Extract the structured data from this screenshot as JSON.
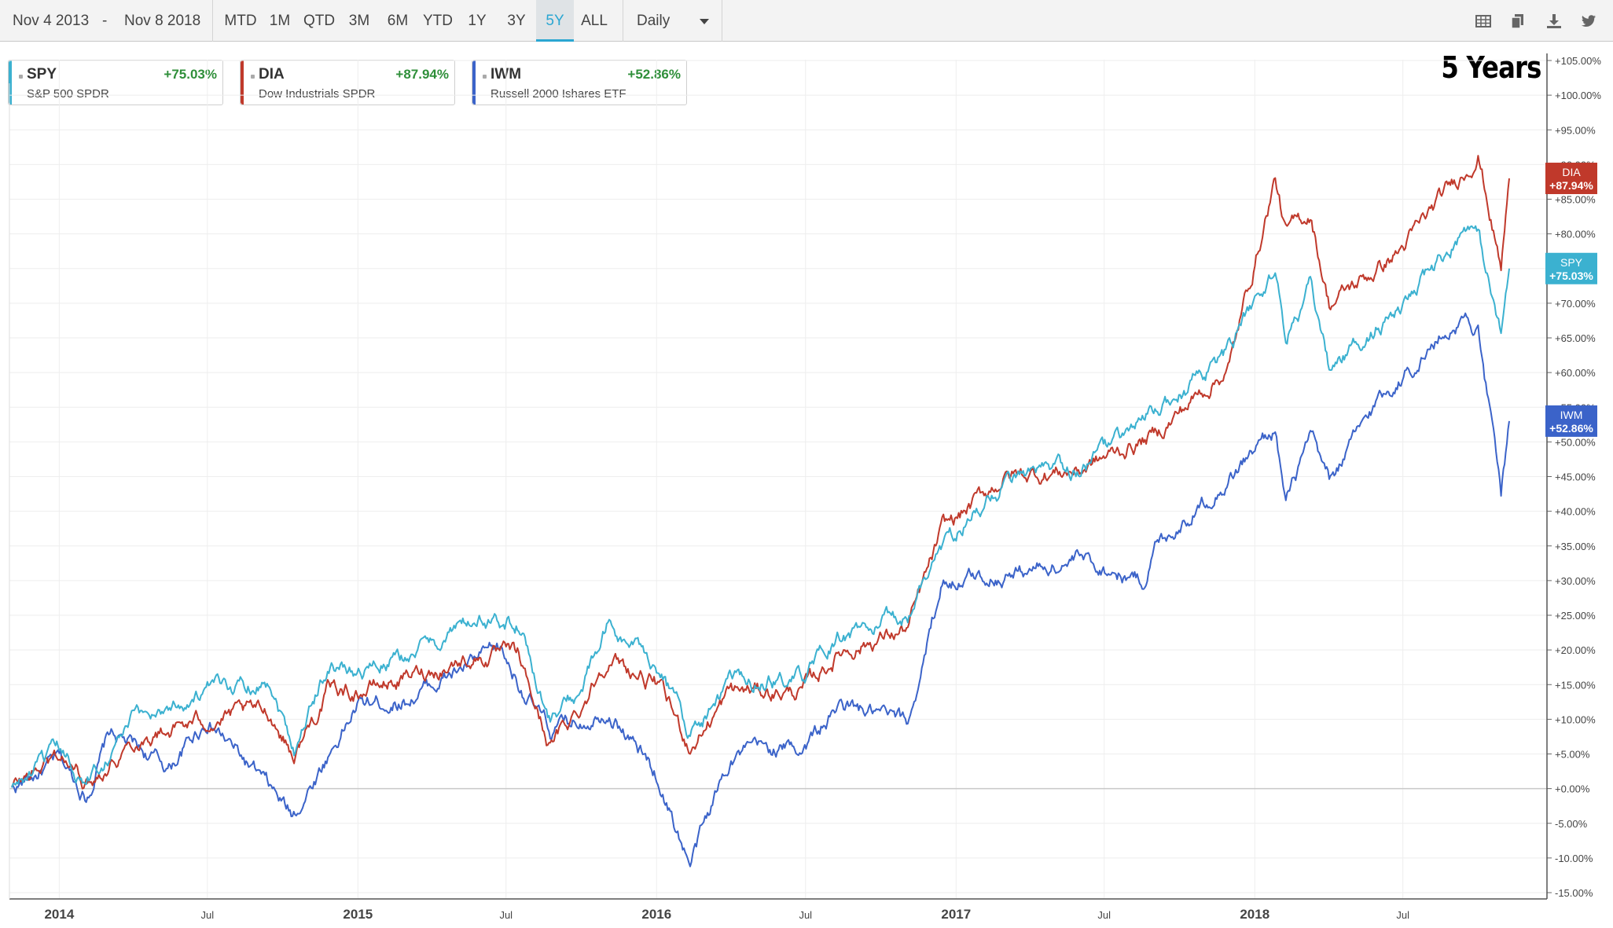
{
  "toolbar": {
    "start_date": "Nov 4 2013",
    "dash": "-",
    "end_date": "Nov 8 2018",
    "ranges": [
      "MTD",
      "1M",
      "QTD",
      "3M",
      "6M",
      "YTD",
      "1Y",
      "3Y",
      "5Y",
      "ALL"
    ],
    "active_range": "5Y",
    "interval": "Daily",
    "icons": [
      "table-icon",
      "copy-icon",
      "download-icon",
      "twitter-icon"
    ]
  },
  "overlay_text": "5 Years",
  "legend": [
    {
      "symbol": "SPY",
      "name": "S&P 500 SPDR",
      "change": "+75.03%",
      "color": "#3bb1d0"
    },
    {
      "symbol": "DIA",
      "name": "Dow Industrials SPDR",
      "change": "+87.94%",
      "color": "#c0392b"
    },
    {
      "symbol": "IWM",
      "name": "Russell 2000 Ishares ETF",
      "change": "+52.86%",
      "color": "#3b63c9"
    }
  ],
  "chart_data": {
    "type": "line",
    "x_ticks": [
      "2014",
      "Jul",
      "2015",
      "Jul",
      "2016",
      "Jul",
      "2017",
      "Jul",
      "2018",
      "Jul"
    ],
    "y_ticks": [
      "+105.00%",
      "+100.00%",
      "+95.00%",
      "+90.00%",
      "+85.00%",
      "+80.00%",
      "+75.00%",
      "+70.00%",
      "+65.00%",
      "+60.00%",
      "+55.00%",
      "+50.00%",
      "+45.00%",
      "+40.00%",
      "+35.00%",
      "+30.00%",
      "+25.00%",
      "+20.00%",
      "+15.00%",
      "+10.00%",
      "+5.00%",
      "+0.00%",
      "-5.00%",
      "-10.00%",
      "-15.00%"
    ],
    "ylim": [
      -15,
      105
    ],
    "xlim": [
      "2013-11-04",
      "2018-11-08"
    ],
    "grid": true,
    "series": [
      {
        "name": "SPY",
        "color": "#3bb1d0",
        "last_label": "+75.03%",
        "x": [
          "2013-11-04",
          "2014-01-01",
          "2014-02-03",
          "2014-04-01",
          "2014-07-01",
          "2014-09-15",
          "2014-10-15",
          "2014-11-25",
          "2014-12-31",
          "2015-03-01",
          "2015-05-20",
          "2015-07-15",
          "2015-08-24",
          "2015-10-01",
          "2015-11-01",
          "2016-01-01",
          "2016-02-11",
          "2016-04-01",
          "2016-06-27",
          "2016-08-15",
          "2016-11-03",
          "2016-12-15",
          "2017-03-01",
          "2017-06-01",
          "2017-09-01",
          "2017-12-01",
          "2018-01-26",
          "2018-02-08",
          "2018-03-10",
          "2018-04-02",
          "2018-06-01",
          "2018-07-01",
          "2018-09-20",
          "2018-10-01",
          "2018-10-29",
          "2018-11-08"
        ],
        "y": [
          0,
          5,
          1,
          10,
          14,
          16,
          6,
          18,
          17,
          19,
          24,
          24,
          10,
          14,
          23,
          18,
          8,
          15,
          16,
          22,
          25,
          35,
          44,
          46,
          54,
          63,
          75,
          65,
          72,
          60,
          67,
          69,
          82,
          80,
          65,
          75
        ]
      },
      {
        "name": "DIA",
        "color": "#c0392b",
        "last_label": "+87.94%",
        "x": [
          "2013-11-04",
          "2014-01-01",
          "2014-02-03",
          "2014-04-01",
          "2014-07-01",
          "2014-09-15",
          "2014-10-15",
          "2014-11-25",
          "2014-12-31",
          "2015-03-01",
          "2015-05-20",
          "2015-07-15",
          "2015-08-24",
          "2015-10-01",
          "2015-11-01",
          "2016-01-01",
          "2016-02-11",
          "2016-04-01",
          "2016-06-27",
          "2016-08-15",
          "2016-11-03",
          "2016-12-15",
          "2017-03-01",
          "2017-06-01",
          "2017-09-01",
          "2017-12-01",
          "2018-01-26",
          "2018-02-08",
          "2018-03-10",
          "2018-04-02",
          "2018-06-01",
          "2018-07-01",
          "2018-09-20",
          "2018-10-01",
          "2018-10-29",
          "2018-11-08"
        ],
        "y": [
          0,
          5,
          1,
          7,
          10,
          11,
          5,
          14,
          14,
          16,
          19,
          19,
          6,
          12,
          19,
          15,
          6,
          14,
          14,
          20,
          23,
          37,
          45,
          46,
          51,
          61,
          88,
          80,
          83,
          70,
          75,
          78,
          90,
          92,
          75,
          88
        ]
      },
      {
        "name": "IWM",
        "color": "#3b63c9",
        "last_label": "+52.86%",
        "x": [
          "2013-11-04",
          "2014-01-01",
          "2014-02-03",
          "2014-03-04",
          "2014-05-15",
          "2014-07-01",
          "2014-10-13",
          "2014-12-31",
          "2015-03-01",
          "2015-06-23",
          "2015-08-24",
          "2015-10-01",
          "2015-11-01",
          "2016-01-01",
          "2016-02-11",
          "2016-04-01",
          "2016-06-27",
          "2016-08-15",
          "2016-11-03",
          "2016-12-15",
          "2017-03-01",
          "2017-06-01",
          "2017-08-18",
          "2017-09-01",
          "2017-12-01",
          "2018-01-26",
          "2018-02-08",
          "2018-03-10",
          "2018-04-02",
          "2018-06-01",
          "2018-08-31",
          "2018-09-20",
          "2018-10-01",
          "2018-10-29",
          "2018-11-08"
        ],
        "y": [
          0,
          4,
          -1,
          8,
          3,
          10,
          -4,
          12,
          13,
          20,
          8,
          10,
          12,
          2,
          -11,
          5,
          6,
          12,
          9,
          30,
          31,
          33,
          30,
          35,
          45,
          52,
          41,
          50,
          44,
          56,
          67,
          68,
          66,
          42,
          53
        ]
      }
    ]
  }
}
